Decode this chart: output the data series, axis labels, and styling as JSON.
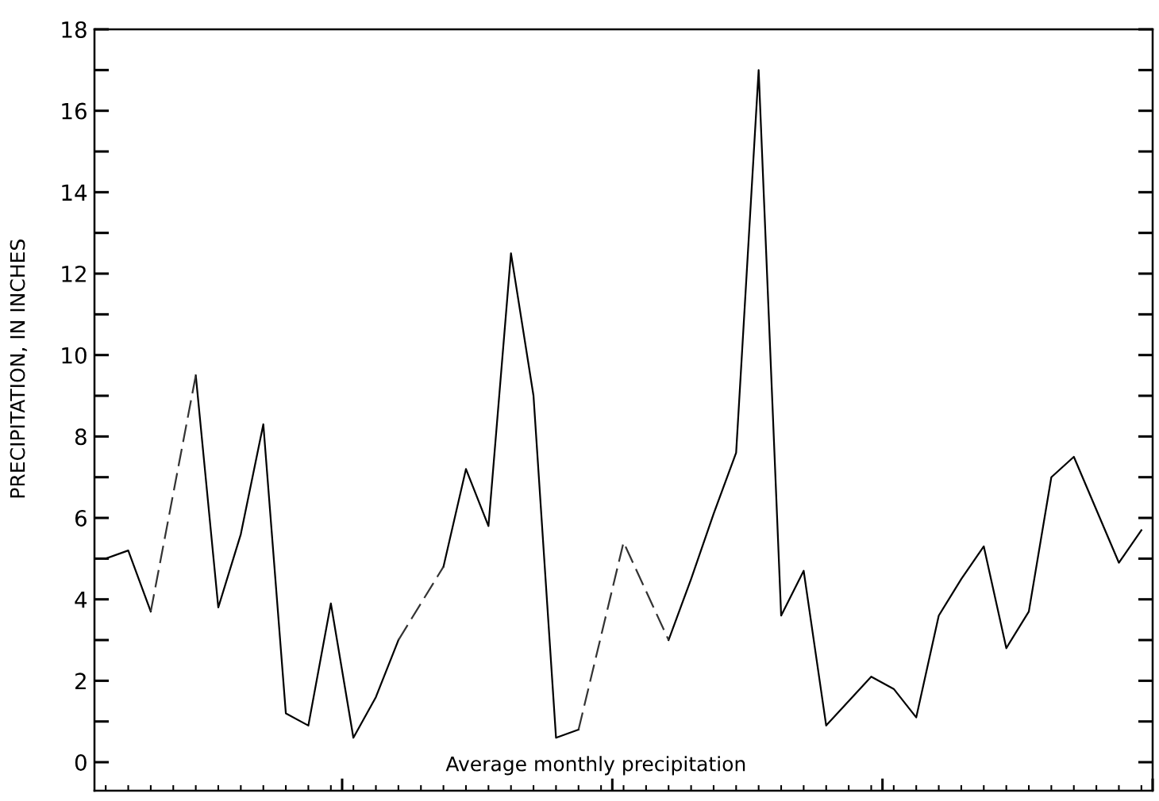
{
  "chart_data": {
    "type": "line",
    "ylabel": "PRECIPITATION, IN INCHES",
    "annotations": [
      "Average monthly precipitation"
    ],
    "categories": [
      null,
      null,
      null,
      null,
      null,
      null,
      null,
      null,
      null,
      null,
      null,
      null,
      null,
      null,
      null,
      null,
      null,
      null,
      null,
      null,
      null,
      null,
      null,
      null,
      null,
      null,
      null,
      null,
      null,
      null,
      null,
      null,
      null,
      null,
      null,
      null,
      null,
      null,
      null,
      null,
      null,
      null,
      null,
      null,
      null,
      null,
      null
    ],
    "ylim": [
      -0.7,
      18
    ],
    "yticks": [
      0,
      2,
      4,
      6,
      8,
      10,
      12,
      14,
      16,
      18
    ],
    "line_style": "solid",
    "series": [
      {
        "color": "#000000",
        "values": [
          5.0,
          5.2,
          3.7,
          null,
          9.5,
          3.8,
          5.6,
          8.3,
          1.2,
          0.9,
          3.9,
          0.6,
          1.6,
          3.0,
          null,
          4.8,
          7.2,
          5.8,
          12.5,
          9.0,
          0.6,
          0.8,
          null,
          null,
          null,
          3.0,
          4.5,
          6.1,
          7.6,
          17.0,
          3.6,
          4.7,
          0.9,
          1.5,
          2.1,
          1.8,
          1.1,
          3.6,
          4.5,
          5.3,
          2.8,
          3.7,
          7.0,
          7.5,
          6.2,
          4.9,
          5.7
        ]
      },
      {
        "color": "#333333",
        "line_style": "dashed",
        "values": [
          null,
          null,
          3.7,
          6.6,
          9.5,
          null,
          null,
          null,
          null,
          null,
          null,
          null,
          null,
          3.0,
          3.9,
          4.8,
          null,
          null,
          null,
          null,
          null,
          0.8,
          3.1,
          5.4,
          4.2,
          3.0,
          null,
          null,
          null,
          null,
          null,
          null,
          null,
          null,
          null,
          null,
          null,
          null,
          null,
          null,
          null,
          null,
          null,
          null,
          null,
          null,
          null
        ]
      }
    ]
  }
}
